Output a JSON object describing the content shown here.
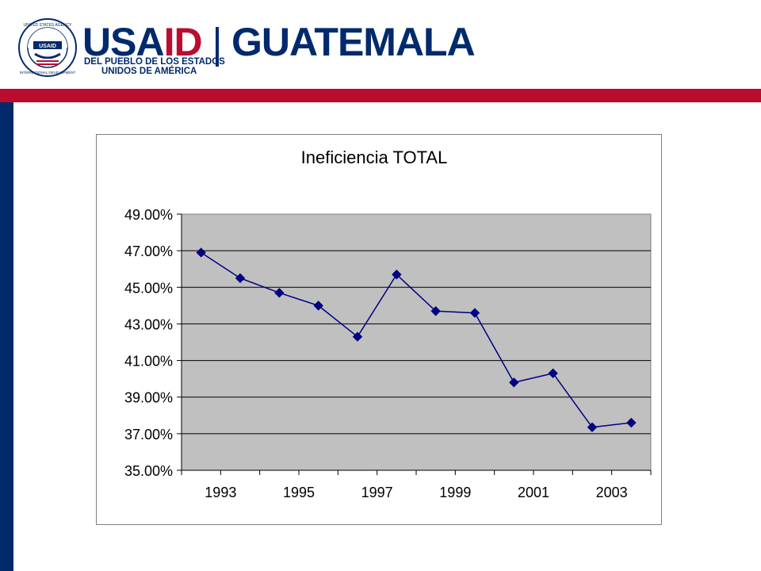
{
  "header": {
    "brand": "USAID",
    "brand_part1": "USA",
    "brand_part2": "ID",
    "country": "GUATEMALA",
    "tagline_line1": "DEL PUEBLO DE LOS ESTADOS",
    "tagline_line2": "UNIDOS DE AMÉRICA",
    "seal_text_top": "UNITED STATES AGENCY",
    "seal_text_bottom": "INTERNATIONAL DEVELOPMENT",
    "seal_center": "USAID"
  },
  "colors": {
    "navy": "#002a6c",
    "red": "#ba0c2f",
    "plot_bg": "#c0c0c0",
    "series": "#000080"
  },
  "chart_data": {
    "type": "line",
    "title": "Ineficiencia TOTAL",
    "xlabel": "",
    "ylabel": "",
    "x_tick_labels": [
      "1993",
      "1995",
      "1997",
      "1999",
      "2001",
      "2003"
    ],
    "y_tick_labels": [
      "35.00%",
      "37.00%",
      "39.00%",
      "41.00%",
      "43.00%",
      "45.00%",
      "47.00%",
      "49.00%"
    ],
    "ylim": [
      35,
      49
    ],
    "x": [
      "1993",
      "1994",
      "1995",
      "1996",
      "1997",
      "1998",
      "1999",
      "2000",
      "2001",
      "2002",
      "2003",
      "2004"
    ],
    "series": [
      {
        "values": [
          46.9,
          45.5,
          44.7,
          44.0,
          42.3,
          45.7,
          43.7,
          43.6,
          39.8,
          40.3,
          37.35,
          37.6
        ]
      }
    ],
    "grid": "horizontal",
    "legend": "none",
    "marker": "diamond"
  }
}
